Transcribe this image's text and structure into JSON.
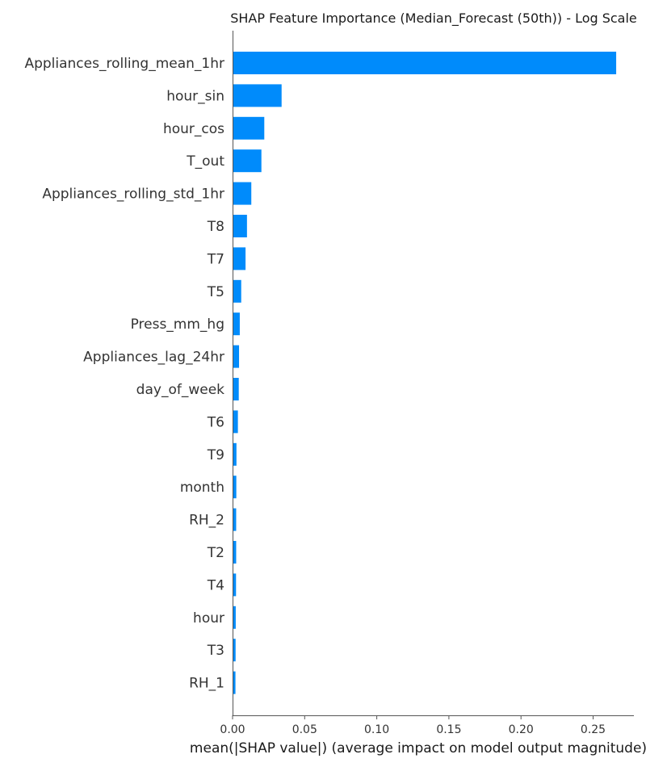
{
  "chart_data": {
    "type": "bar",
    "orientation": "horizontal",
    "title": "SHAP Feature Importance (Median_Forecast (50th)) - Log Scale",
    "xlabel": "mean(|SHAP value|) (average impact on model output magnitude)",
    "ylabel": "",
    "xlim": [
      0,
      0.28
    ],
    "xticks": [
      "0.00",
      "0.05",
      "0.10",
      "0.15",
      "0.20",
      "0.25"
    ],
    "xtick_values": [
      0,
      0.05,
      0.1,
      0.15,
      0.2,
      0.25
    ],
    "bar_color": "#008bfb",
    "grid": false,
    "categories": [
      "Appliances_rolling_mean_1hr",
      "hour_sin",
      "hour_cos",
      "T_out",
      "Appliances_rolling_std_1hr",
      "T8",
      "T7",
      "T5",
      "Press_mm_hg",
      "Appliances_lag_24hr",
      "day_of_week",
      "T6",
      "T9",
      "month",
      "RH_2",
      "T2",
      "T4",
      "hour",
      "T3",
      "RH_1"
    ],
    "values": [
      0.266,
      0.034,
      0.022,
      0.02,
      0.013,
      0.01,
      0.009,
      0.006,
      0.005,
      0.0045,
      0.0043,
      0.0037,
      0.0027,
      0.0026,
      0.0025,
      0.0025,
      0.0024,
      0.0022,
      0.0021,
      0.002
    ]
  }
}
